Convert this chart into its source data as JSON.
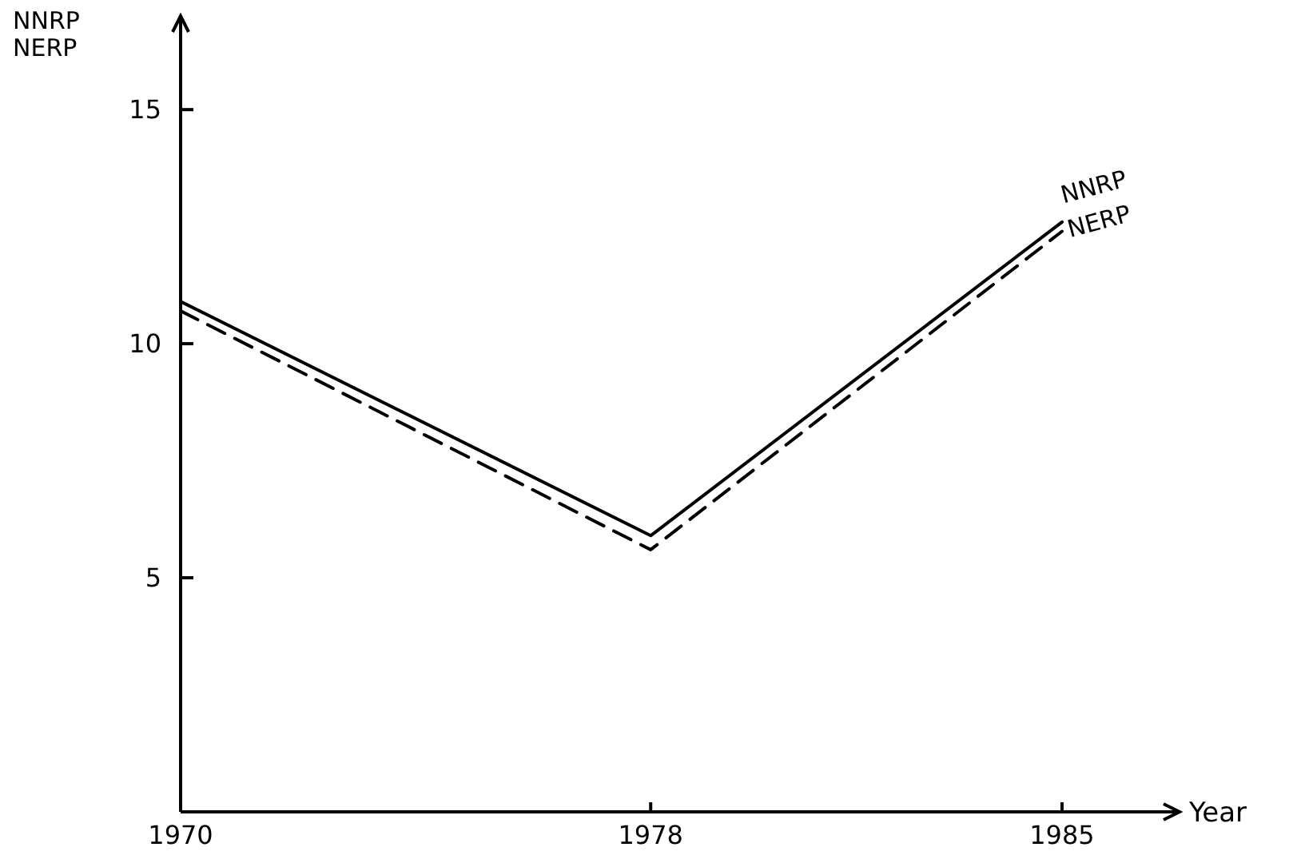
{
  "chart_data": {
    "type": "line",
    "xlabel": "Year",
    "ylabel": "NNRP NERP",
    "x": [
      1970,
      1978,
      1985
    ],
    "xlim": [
      1970,
      1987
    ],
    "xticks": [
      1970,
      1978,
      1985
    ],
    "ylim": [
      0,
      17
    ],
    "yticks": [
      5,
      10,
      15
    ],
    "grid": false,
    "series": [
      {
        "name": "NNRP",
        "color": "#000000",
        "line_style": "solid",
        "values": [
          10.9,
          5.9,
          12.6
        ]
      },
      {
        "name": "NERP",
        "color": "#000000",
        "line_style": "dashed",
        "values": [
          10.7,
          5.6,
          12.4
        ]
      }
    ]
  }
}
